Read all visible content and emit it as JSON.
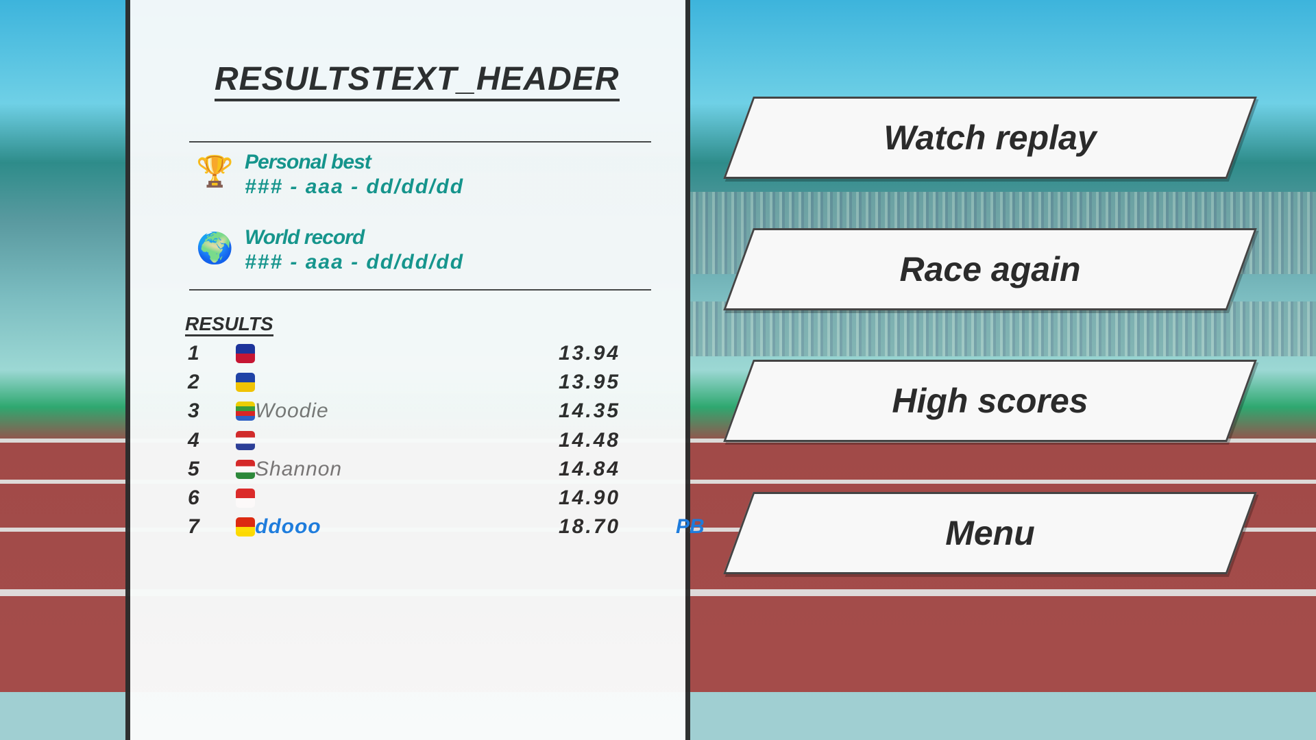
{
  "header": {
    "title": "RESULTSTEXT_HEADER"
  },
  "personal_best": {
    "label": "Personal best",
    "value": "### - aaa - dd/dd/dd",
    "icon": "trophy-icon"
  },
  "world_record": {
    "label": "World record",
    "value": "### - aaa - dd/dd/dd",
    "icon": "globe-icon"
  },
  "results": {
    "title": "RESULTS",
    "rows": [
      {
        "rank": "1",
        "flag_colors": [
          "#1a2f9a",
          "#c8102e"
        ],
        "name": "",
        "time": "13.94",
        "badge": ""
      },
      {
        "rank": "2",
        "flag_colors": [
          "#1d3fa6",
          "#f5c400"
        ],
        "name": "",
        "time": "13.95",
        "badge": ""
      },
      {
        "rank": "3",
        "flag_colors": [
          "#f2d000",
          "#3a9b3a",
          "#d22",
          "#2d5fc9"
        ],
        "name": "Woodie",
        "time": "14.35",
        "badge": ""
      },
      {
        "rank": "4",
        "flag_colors": [
          "#d42a2a",
          "#ffffff",
          "#2a3f9a"
        ],
        "name": "",
        "time": "14.48",
        "badge": ""
      },
      {
        "rank": "5",
        "flag_colors": [
          "#d72828",
          "#ffffff",
          "#2a8a3a"
        ],
        "name": "Shannon",
        "time": "14.84",
        "badge": ""
      },
      {
        "rank": "6",
        "flag_colors": [
          "#dd2a2a",
          "#ffffff"
        ],
        "name": "",
        "time": "14.90",
        "badge": ""
      },
      {
        "rank": "7",
        "flag_colors": [
          "#de2910",
          "#ffde00"
        ],
        "name": "ddooo",
        "time": "18.70",
        "badge": "PB"
      }
    ]
  },
  "menu": {
    "buttons": [
      "Watch replay",
      "Race again",
      "High scores",
      "Menu"
    ]
  },
  "colors": {
    "accent_teal": "#14958c",
    "highlight_blue": "#1a7de0",
    "track": "#a54d4b"
  }
}
